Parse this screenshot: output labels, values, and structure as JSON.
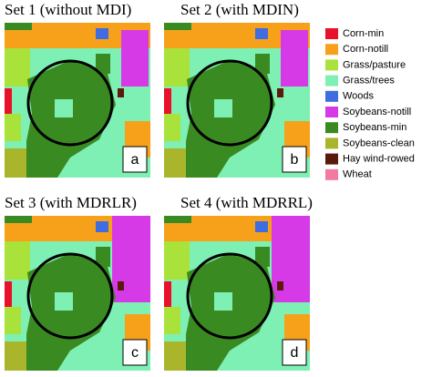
{
  "panels": [
    {
      "title": "Set 1 (without MDI)",
      "label": "a"
    },
    {
      "title": "Set 2 (with MDIN)",
      "label": "b"
    },
    {
      "title": "Set 3 (with MDRLR)",
      "label": "c"
    },
    {
      "title": "Set 4 (with MDRRL)",
      "label": "d"
    }
  ],
  "legend": [
    {
      "label": "Corn-min",
      "color": "#e8102a"
    },
    {
      "label": "Corn-notill",
      "color": "#f7a11a"
    },
    {
      "label": "Grass/pasture",
      "color": "#a8e23a"
    },
    {
      "label": "Grass/trees",
      "color": "#7ef0b4"
    },
    {
      "label": "Woods",
      "color": "#3f6ce0"
    },
    {
      "label": "Soybeans-notill",
      "color": "#d63ae6"
    },
    {
      "label": "Soybeans-min",
      "color": "#3a8a22"
    },
    {
      "label": "Soybeans-clean",
      "color": "#a9b62c"
    },
    {
      "label": "Hay wind-rowed",
      "color": "#5a1a0a"
    },
    {
      "label": "Wheat",
      "color": "#f07aa0"
    }
  ]
}
